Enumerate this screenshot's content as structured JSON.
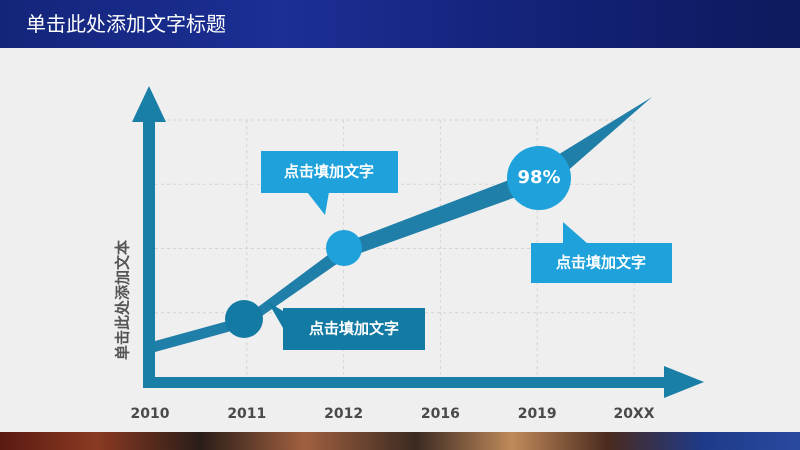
{
  "header": {
    "title": "单击此处添加文字标题"
  },
  "colors": {
    "header": "#1a2c8c",
    "axis": "#1a7fa6",
    "line": "#1f7fa8",
    "light_blue": "#1fa2db",
    "dark_blue": "#137aa3",
    "grid": "#d3d3d3"
  },
  "chart_data": {
    "type": "line",
    "categories": [
      "2010",
      "2011",
      "2012",
      "2016",
      "2019",
      "20XX"
    ],
    "xlabel": "",
    "ylabel": "单击此处添加文本",
    "grid": true,
    "series": [
      {
        "markers": [
          {
            "category": "2011"
          },
          {
            "category": "2012"
          },
          {
            "category": "2019",
            "label": "98%"
          }
        ]
      }
    ],
    "annotations": [
      {
        "text": "点击填加文字",
        "near": "2012"
      },
      {
        "text": "点击填加文字",
        "near": "2011"
      },
      {
        "text": "点击填加文字",
        "near": "2019"
      }
    ]
  }
}
